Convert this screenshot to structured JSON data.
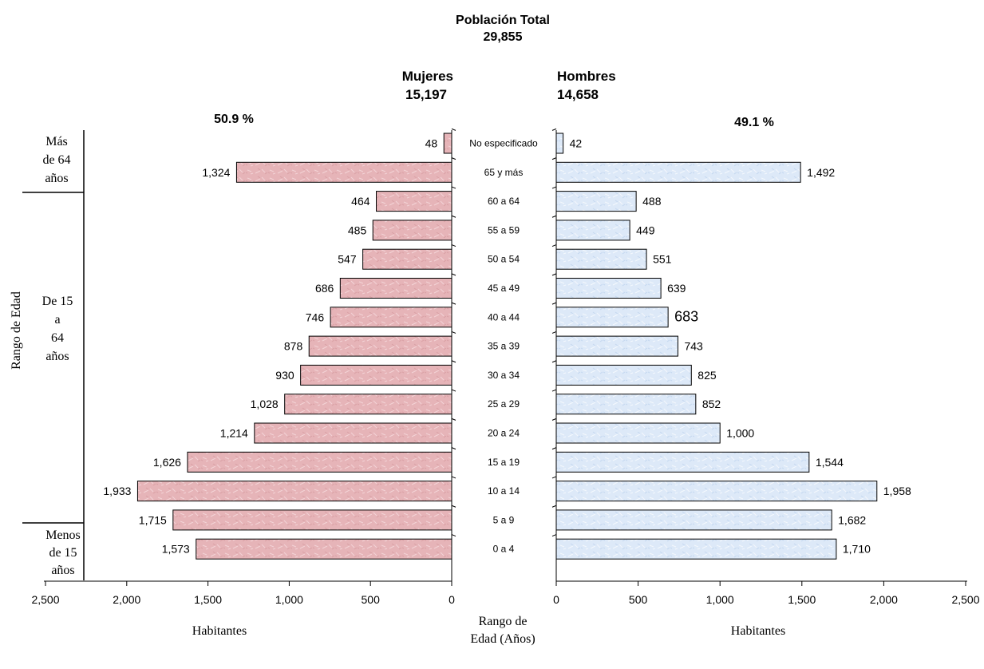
{
  "header": {
    "title": "Población Total",
    "total": "29,855",
    "women_label": "Mujeres",
    "women_total": "15,197",
    "men_label": "Hombres",
    "men_total": "14,658",
    "women_pct": "50.9 %",
    "men_pct": "49.1 %"
  },
  "side_label": "Rango de Edad",
  "groups": {
    "top": "Más de 64 años",
    "middle": "De 15 a 64 años",
    "bottom": "Menos de 15 años"
  },
  "center_axis_label": "Rango de Edad (Años)",
  "colors": {
    "women_fill": "#e6b4b8",
    "men_fill": "#dde9f8",
    "stroke": "#000000"
  },
  "chart_data": {
    "type": "bar",
    "orientation": "horizontal",
    "subtype": "population-pyramid",
    "categories": [
      "No especificado",
      "65 y más",
      "60 a 64",
      "55 a 59",
      "50 a 54",
      "45 a 49",
      "40 a 44",
      "35 a 39",
      "30 a 34",
      "25 a 29",
      "20 a 24",
      "15 a 19",
      "10 a 14",
      "5 a 9",
      "0 a 4"
    ],
    "series": [
      {
        "name": "Mujeres",
        "values": [
          48,
          1324,
          464,
          485,
          547,
          686,
          746,
          878,
          930,
          1028,
          1214,
          1626,
          1933,
          1715,
          1573
        ],
        "labels": [
          "48",
          "1,324",
          "464",
          "485",
          "547",
          "686",
          "746",
          "878",
          "930",
          "1,028",
          "1,214",
          "1,626",
          "1,933",
          "1,715",
          "1,573"
        ]
      },
      {
        "name": "Hombres",
        "values": [
          42,
          1492,
          488,
          449,
          551,
          639,
          683,
          743,
          825,
          852,
          1000,
          1544,
          1958,
          1682,
          1710
        ],
        "labels": [
          "42",
          "1,492",
          "488",
          "449",
          "551",
          "639",
          "683",
          "743",
          "825",
          "852",
          "1,000",
          "1,544",
          "1,958",
          "1,682",
          "1,710"
        ]
      }
    ],
    "xlim": [
      0,
      2500
    ],
    "left_ticks": [
      "2,500",
      "2,000",
      "1,500",
      "1,000",
      "500",
      "0"
    ],
    "right_ticks": [
      "0",
      "500",
      "1,000",
      "1,500",
      "2,000",
      "2,500"
    ],
    "left_xlabel": "Habitantes",
    "right_xlabel": "Habitantes",
    "grid": false,
    "legend": "none"
  }
}
